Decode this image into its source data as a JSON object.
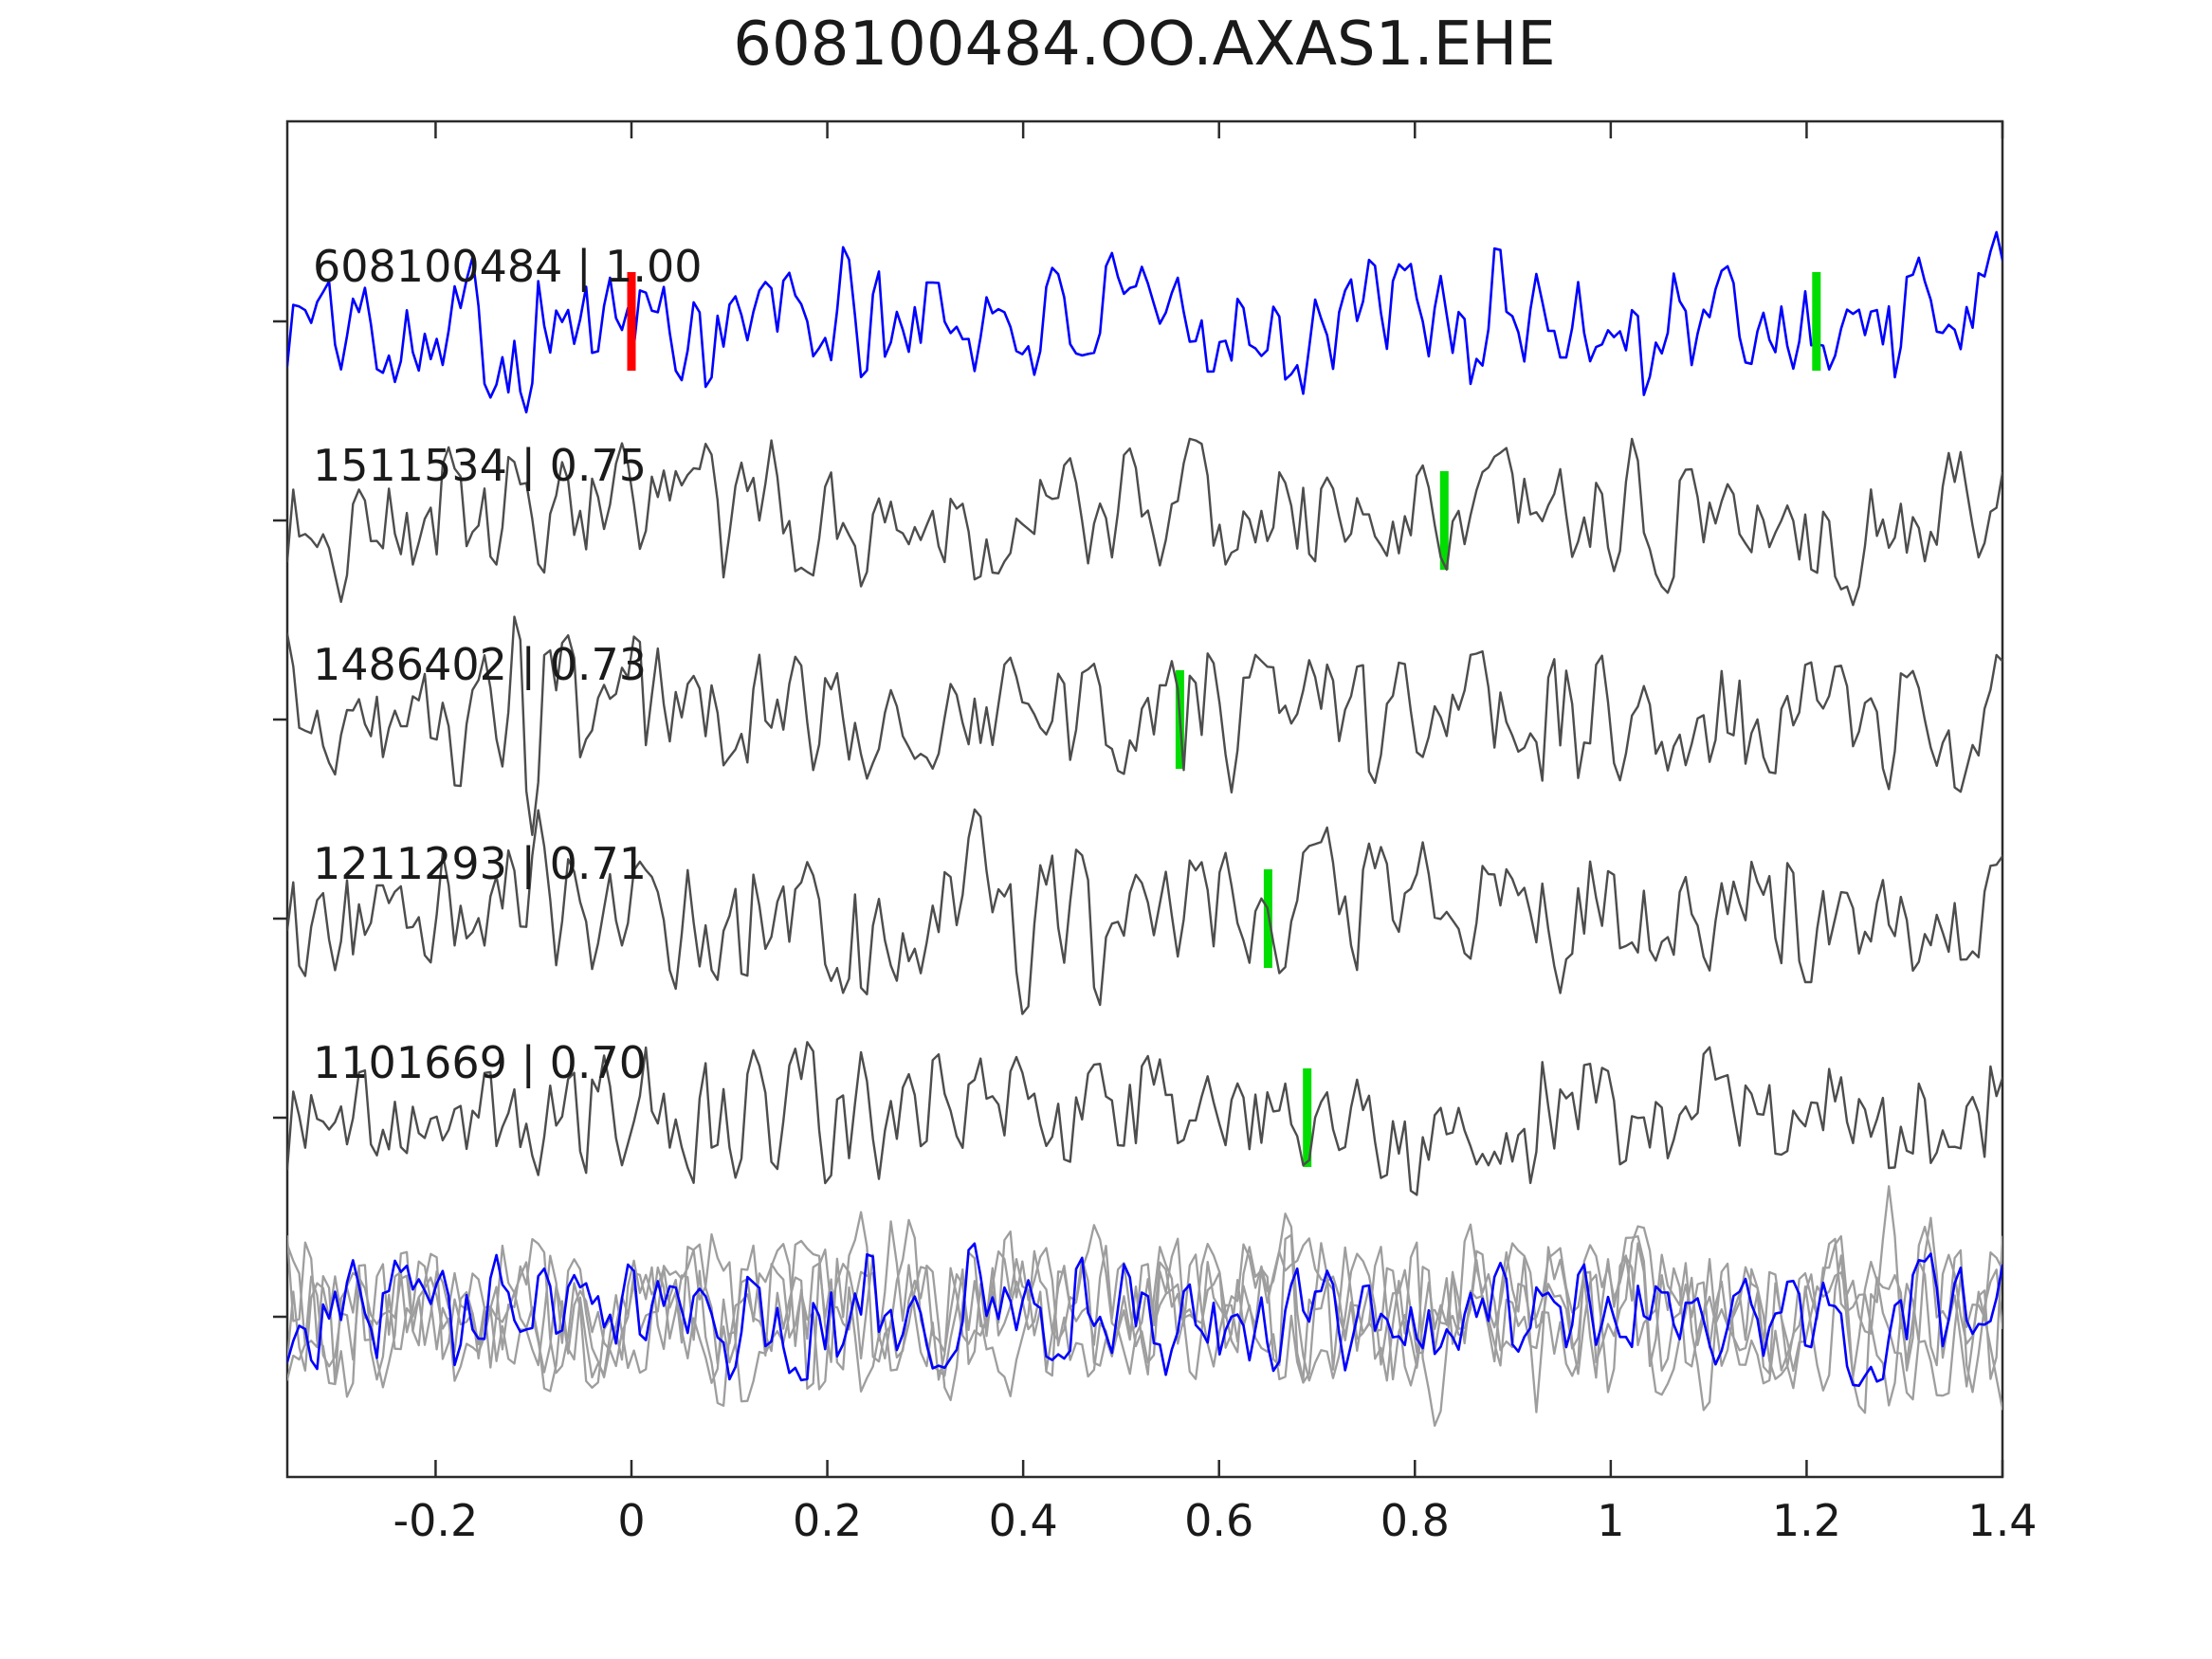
{
  "title": "608100484.OO.AXAS1.EHE",
  "colors": {
    "template_blue": "#0000ff",
    "detection_gray": "#4d4d4d",
    "overlay_gray": "#9e9e9e",
    "pick_green": "#00dd00",
    "pick_red": "#ff0000",
    "axis_color": "#2b2b2b",
    "text_color": "#1a1a1a"
  },
  "axis": {
    "x_ticks": [
      -0.2,
      0,
      0.2,
      0.4,
      0.6,
      0.8,
      1,
      1.2,
      1.4
    ],
    "x_tick_labels": [
      "-0.2",
      "0",
      "0.2",
      "0.4",
      "0.6",
      "0.8",
      "1",
      "1.2",
      "1.4"
    ],
    "x_min": -0.3515,
    "x_max": 1.4
  },
  "chart_data": {
    "type": "line",
    "title": "608100484.OO.AXAS1.EHE",
    "xlabel": "",
    "ylabel": "",
    "xlim": [
      -0.3515,
      1.4
    ],
    "grid": false,
    "legend": "none",
    "description": "Cross-correlation template (blue, top) vs detected events (gray). Vertical bars mark picks: red = template zero time, green = detection pick times. Bottom row: aligned detections overlay (gray) with template (blue).",
    "traces": [
      {
        "label": "608100484 | 1.00",
        "event_id": "608100484",
        "correlation": 1.0,
        "role": "template",
        "markers": [
          {
            "x": 0.0,
            "color": "red"
          },
          {
            "x": 1.21,
            "color": "green"
          }
        ],
        "seed": 101,
        "amp": 38,
        "row": 0
      },
      {
        "label": "1511534 | 0.75",
        "event_id": "1511534",
        "correlation": 0.75,
        "role": "detection",
        "markers": [
          {
            "x": 0.83,
            "color": "green"
          }
        ],
        "seed": 202,
        "amp": 44,
        "row": 1
      },
      {
        "label": "1486402 | 0.73",
        "event_id": "1486402",
        "correlation": 0.73,
        "role": "detection",
        "markers": [
          {
            "x": 0.56,
            "color": "green"
          }
        ],
        "seed": 303,
        "amp": 42,
        "row": 2
      },
      {
        "label": "1211293 | 0.71",
        "event_id": "1211293",
        "correlation": 0.71,
        "role": "detection",
        "markers": [
          {
            "x": 0.65,
            "color": "green"
          }
        ],
        "seed": 404,
        "amp": 44,
        "row": 3
      },
      {
        "label": "1101669 | 0.70",
        "event_id": "1101669",
        "correlation": 0.7,
        "role": "detection",
        "markers": [
          {
            "x": 0.69,
            "color": "green"
          }
        ],
        "seed": 505,
        "amp": 40,
        "row": 4
      }
    ],
    "overlay": {
      "row": 5,
      "gray_traces": [
        {
          "seed": 601,
          "amp": 48
        },
        {
          "seed": 602,
          "amp": 46
        },
        {
          "seed": 603,
          "amp": 50
        },
        {
          "seed": 604,
          "amp": 44
        }
      ],
      "blue_trace": {
        "seed": 700,
        "amp": 36
      }
    },
    "n_samples": 288
  }
}
